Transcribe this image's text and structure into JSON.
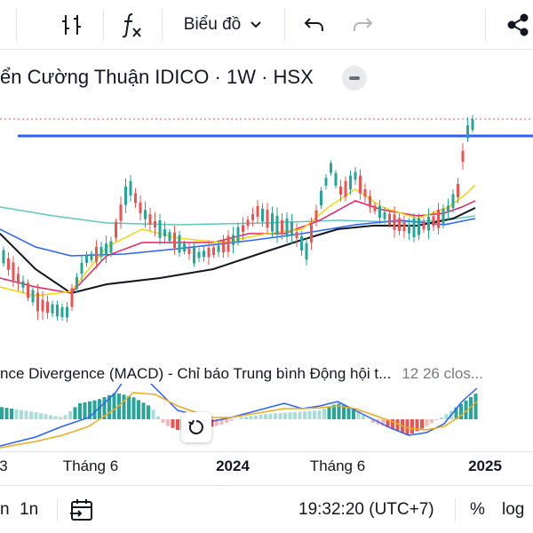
{
  "toolbar": {
    "indicators_icon": "indicators-icon",
    "formula_icon": "fx-icon",
    "chart_type_label": "Biểu đồ",
    "undo_icon": "undo-icon",
    "redo_icon": "redo-icon",
    "share_icon": "share-icon"
  },
  "legend": {
    "title": "ển Cường Thuận IDICO · 1W · HSX"
  },
  "macd": {
    "name": "nce Divergence (MACD) - Chỉ báo Trung bình Động hội t...",
    "params": "12 26 clos..."
  },
  "time_axis": {
    "ticks": [
      "3",
      "Tháng 6",
      "2024",
      "Tháng 6",
      "2025"
    ]
  },
  "bottom_bar": {
    "range_left": "n",
    "range_1n": "1n",
    "goto_icon": "calendar-goto-icon",
    "clock": "19:32:20 (UTC+7)",
    "percent": "%",
    "log": "log"
  },
  "colors": {
    "up": "#26a69a",
    "down": "#ef5350",
    "resistance": "#2962ff",
    "ma_black": "#131722",
    "ma_red": "#e91e63",
    "ma_yellow": "#f5d60e",
    "ma_blue": "#2962ff",
    "ma_teal": "#5ec7c2",
    "macd_line": "#2962ff",
    "signal_line": "#f2a91b"
  }
}
